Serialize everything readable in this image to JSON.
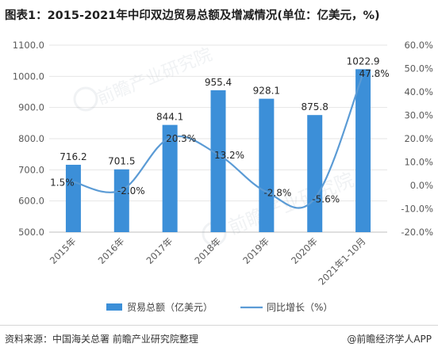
{
  "chart_data": {
    "type": "bar+line",
    "title": "图表1：2015-2021年中印双边贸易总额及增减情况(单位：亿美元，%)",
    "categories": [
      "2015年",
      "2016年",
      "2017年",
      "2018年",
      "2019年",
      "2020年",
      "2021年1-10月"
    ],
    "series": [
      {
        "name": "贸易总额（亿美元）",
        "type": "bar",
        "axis": "left",
        "color": "#3c8fd8",
        "values": [
          716.2,
          701.5,
          844.1,
          955.4,
          928.1,
          875.8,
          1022.9
        ],
        "labels": [
          "716.2",
          "701.5",
          "844.1",
          "955.4",
          "928.1",
          "875.8",
          "1022.9"
        ]
      },
      {
        "name": "同比增长（%）",
        "type": "line",
        "axis": "right",
        "color": "#5b9bd5",
        "values": [
          1.5,
          -2.0,
          20.3,
          13.2,
          -2.8,
          -5.6,
          47.8
        ],
        "labels": [
          "1.5%",
          "-2.0%",
          "20.3%",
          "13.2%",
          "-2.8%",
          "-5.6%",
          "47.8%"
        ]
      }
    ],
    "y_left": {
      "min": 500,
      "max": 1100,
      "ticks": [
        500,
        600,
        700,
        800,
        900,
        1000,
        1100
      ],
      "tick_labels": [
        "500.0",
        "600.0",
        "700.0",
        "800.0",
        "900.0",
        "1000.0",
        "1100.0"
      ]
    },
    "y_right": {
      "min": -20,
      "max": 60,
      "ticks": [
        -20,
        -10,
        0,
        10,
        20,
        30,
        40,
        50,
        60
      ],
      "tick_labels": [
        "-20.0%",
        "-10.0%",
        "0.0%",
        "10.0%",
        "20.0%",
        "30.0%",
        "40.0%",
        "50.0%",
        "60.0%"
      ]
    },
    "grid": true,
    "legend_position": "bottom"
  },
  "source": "资料来源：中国海关总署 前瞻产业研究院整理",
  "credit": "@前瞻经济学人APP",
  "watermark": "前瞻产业研究院"
}
